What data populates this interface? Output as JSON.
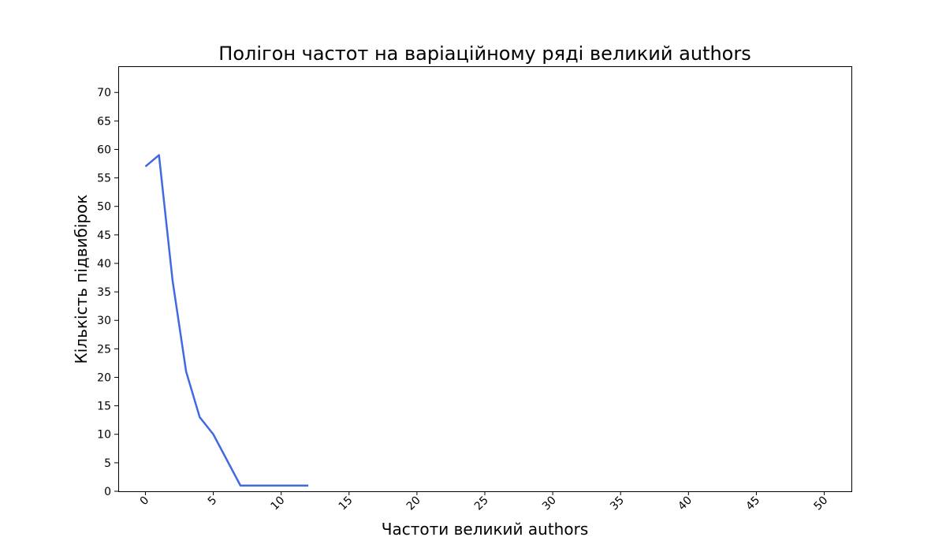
{
  "chart_data": {
    "type": "line",
    "title": "Полігон частот на варіаційному ряді великий authors",
    "xlabel": "Частоти великий authors",
    "ylabel": "Кількість підвибірок",
    "xlim": [
      -2,
      52
    ],
    "ylim": [
      0,
      74.6
    ],
    "x_ticks": [
      0,
      5,
      10,
      15,
      20,
      25,
      30,
      35,
      40,
      45,
      50
    ],
    "y_ticks": [
      0,
      5,
      10,
      15,
      20,
      25,
      30,
      35,
      40,
      45,
      50,
      55,
      60,
      65,
      70
    ],
    "x_tick_labels": [
      "0",
      "5",
      "10",
      "15",
      "20",
      "25",
      "30",
      "35",
      "40",
      "45",
      "50"
    ],
    "y_tick_labels": [
      "0",
      "5",
      "10",
      "15",
      "20",
      "25",
      "30",
      "35",
      "40",
      "45",
      "50",
      "55",
      "60",
      "65",
      "70"
    ],
    "grid": false,
    "series": [
      {
        "color": "#4169E1",
        "x": [
          0,
          1,
          2,
          3,
          4,
          5,
          6,
          7,
          8,
          9,
          10,
          11,
          12
        ],
        "y": [
          57,
          59,
          37,
          21,
          13,
          10,
          5.5,
          1,
          1,
          1,
          1,
          1,
          1
        ]
      }
    ]
  }
}
